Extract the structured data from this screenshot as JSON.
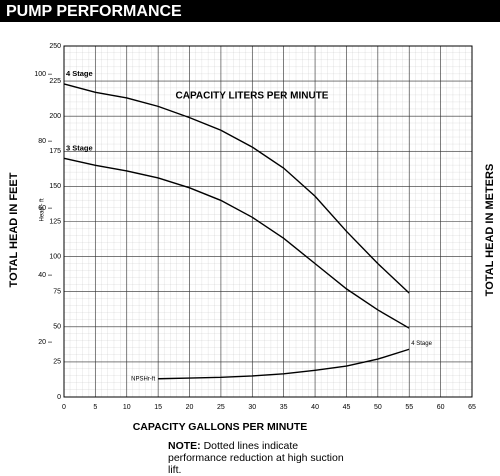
{
  "chart_data": {
    "type": "line",
    "title": "PUMP PERFORMANCE",
    "top_label": "CAPACITY LITERS PER MINUTE",
    "xlabel": "CAPACITY GALLONS PER MINUTE",
    "ylabel": "TOTAL HEAD IN FEET",
    "inner_ylabel": "Head - ft",
    "y2label": "TOTAL HEAD IN METERS",
    "xlim": [
      0,
      65
    ],
    "xticks": [
      0,
      5,
      10,
      15,
      20,
      25,
      30,
      35,
      40,
      45,
      50,
      55,
      60,
      65
    ],
    "ylim": [
      0,
      250
    ],
    "yticks": [
      0,
      25,
      50,
      75,
      100,
      125,
      150,
      175,
      200,
      225,
      250
    ],
    "y2lim": [
      3.6,
      108.4
    ],
    "y2ticks": [
      20,
      40,
      60,
      80,
      100
    ],
    "grid": true,
    "series": [
      {
        "name": "4 Stage",
        "color": "#000000",
        "x": [
          0,
          5,
          10,
          15,
          20,
          25,
          30,
          35,
          40,
          45,
          50,
          55
        ],
        "values": [
          223,
          217,
          213,
          207,
          199,
          190,
          178,
          163,
          143,
          118,
          95,
          74
        ]
      },
      {
        "name": "3 Stage",
        "color": "#000000",
        "x": [
          0,
          5,
          10,
          15,
          20,
          25,
          30,
          35,
          40,
          45,
          50,
          55
        ],
        "values": [
          170,
          165,
          161,
          156,
          149,
          140,
          128,
          113,
          95,
          77,
          62,
          49
        ]
      },
      {
        "name": "NPSHr-ft",
        "end_label": "4 Stage",
        "color": "#000000",
        "x": [
          15,
          20,
          25,
          30,
          35,
          40,
          45,
          50,
          55
        ],
        "values": [
          13,
          13.5,
          14,
          15,
          16.5,
          19,
          22,
          27,
          34
        ]
      }
    ],
    "note": {
      "label": "NOTE:",
      "text": "Dotted lines indicate performance reduction at high suction lift."
    }
  }
}
